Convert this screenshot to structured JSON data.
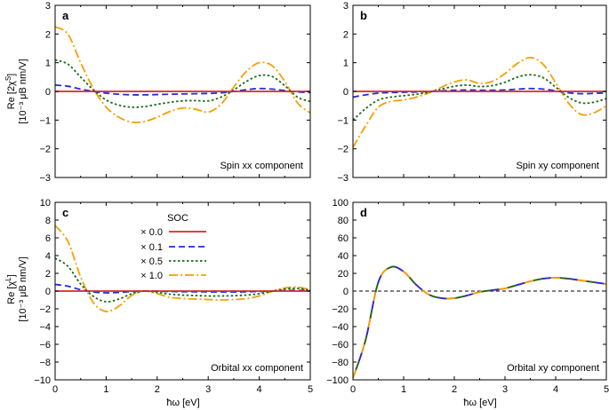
{
  "colors": {
    "soc_0_0": "#d62728",
    "soc_0_1": "#1f2fd6",
    "soc_0_5": "#1a6b1a",
    "soc_1_0": "#f5a000",
    "axis": "#000000",
    "zero_line": "#000000"
  },
  "figure": {
    "xlabel": "ħω [eV]",
    "ylabel_top_line1": "Re [2χ",
    "ylabel_top_sup": "S",
    "ylabel_top_close": "]",
    "ylabel_bottom_line1": "Re [χ",
    "ylabel_bottom_sup": "L",
    "ylabel_bottom_close": "]",
    "ylabel_units": "[10⁻³ μB nm/V]"
  },
  "legend": {
    "title": "SOC",
    "entries": [
      "× 0.0",
      "× 0.1",
      "× 0.5",
      "× 1.0"
    ]
  },
  "chart_data": [
    {
      "panel": "a",
      "type": "line",
      "component": "Spin xx component",
      "xlim": [
        0,
        5
      ],
      "ylim": [
        -3,
        3
      ],
      "xticks": [
        0,
        1,
        2,
        3,
        4,
        5
      ],
      "yticks": [
        -3,
        -2,
        -1,
        0,
        1,
        2,
        3
      ],
      "x": [
        0,
        0.25,
        0.5,
        0.75,
        1,
        1.25,
        1.5,
        1.75,
        2,
        2.25,
        2.5,
        2.75,
        3,
        3.25,
        3.5,
        3.75,
        4,
        4.25,
        4.5,
        4.75,
        5
      ],
      "series": [
        {
          "name": "× 0.0",
          "values": [
            0,
            0,
            0,
            0,
            0,
            0,
            0,
            0,
            0,
            0,
            0,
            0,
            0,
            0,
            0,
            0,
            0,
            0,
            0,
            0,
            0
          ]
        },
        {
          "name": "× 0.1",
          "values": [
            0.22,
            0.18,
            0.08,
            0.0,
            -0.06,
            -0.1,
            -0.12,
            -0.12,
            -0.11,
            -0.1,
            -0.09,
            -0.08,
            -0.07,
            -0.05,
            0.0,
            0.06,
            0.1,
            0.08,
            0.03,
            -0.02,
            -0.04
          ]
        },
        {
          "name": "× 0.5",
          "values": [
            1.1,
            0.95,
            0.5,
            0.05,
            -0.3,
            -0.48,
            -0.55,
            -0.53,
            -0.45,
            -0.38,
            -0.33,
            -0.32,
            -0.33,
            -0.2,
            0.05,
            0.35,
            0.55,
            0.52,
            0.2,
            -0.2,
            -0.35
          ]
        },
        {
          "name": "× 1.0",
          "values": [
            2.25,
            2.0,
            1.0,
            0.1,
            -0.55,
            -0.9,
            -1.07,
            -1.05,
            -0.9,
            -0.7,
            -0.58,
            -0.62,
            -0.72,
            -0.45,
            0.15,
            0.7,
            1.0,
            0.9,
            0.35,
            -0.4,
            -0.75
          ]
        }
      ]
    },
    {
      "panel": "b",
      "type": "line",
      "component": "Spin xy component",
      "xlim": [
        0,
        5
      ],
      "ylim": [
        -3,
        3
      ],
      "xticks": [
        0,
        1,
        2,
        3,
        4,
        5
      ],
      "yticks": [
        -3,
        -2,
        -1,
        0,
        1,
        2,
        3
      ],
      "x": [
        0,
        0.25,
        0.5,
        0.75,
        1,
        1.25,
        1.5,
        1.75,
        2,
        2.25,
        2.5,
        2.75,
        3,
        3.25,
        3.5,
        3.75,
        4,
        4.25,
        4.5,
        4.75,
        5
      ],
      "series": [
        {
          "name": "× 0.0",
          "values": [
            0,
            0,
            0,
            0,
            0,
            0,
            0,
            0,
            0,
            0,
            0,
            0,
            0,
            0,
            0,
            0,
            0,
            0,
            0,
            0,
            0
          ]
        },
        {
          "name": "× 0.1",
          "values": [
            -0.2,
            -0.12,
            -0.06,
            -0.04,
            -0.03,
            -0.02,
            0.0,
            0.02,
            0.04,
            0.05,
            0.04,
            0.04,
            0.05,
            0.08,
            0.1,
            0.08,
            0.02,
            -0.05,
            -0.08,
            -0.07,
            -0.05
          ]
        },
        {
          "name": "× 0.5",
          "values": [
            -1.0,
            -0.6,
            -0.3,
            -0.2,
            -0.15,
            -0.1,
            -0.03,
            0.08,
            0.18,
            0.22,
            0.17,
            0.2,
            0.32,
            0.5,
            0.58,
            0.48,
            0.15,
            -0.2,
            -0.4,
            -0.38,
            -0.25
          ]
        },
        {
          "name": "× 1.0",
          "values": [
            -1.95,
            -1.2,
            -0.55,
            -0.35,
            -0.3,
            -0.2,
            -0.05,
            0.15,
            0.33,
            0.4,
            0.28,
            0.35,
            0.62,
            0.98,
            1.18,
            0.95,
            0.3,
            -0.4,
            -0.8,
            -0.75,
            -0.5
          ]
        }
      ]
    },
    {
      "panel": "c",
      "type": "line",
      "component": "Orbital xx component",
      "xlim": [
        0,
        5
      ],
      "ylim": [
        -10,
        10
      ],
      "xticks": [
        0,
        1,
        2,
        3,
        4,
        5
      ],
      "yticks": [
        -10,
        -8,
        -6,
        -4,
        -2,
        0,
        2,
        4,
        6,
        8,
        10
      ],
      "x": [
        0,
        0.25,
        0.5,
        0.75,
        1,
        1.25,
        1.5,
        1.75,
        2,
        2.25,
        2.5,
        2.75,
        3,
        3.25,
        3.5,
        3.75,
        4,
        4.25,
        4.5,
        4.75,
        5
      ],
      "series": [
        {
          "name": "× 0.0",
          "values": [
            0,
            0,
            0,
            0,
            0,
            0,
            0,
            0,
            0,
            0,
            0,
            0,
            0,
            0,
            0,
            0,
            0,
            0,
            0,
            0,
            0
          ]
        },
        {
          "name": "× 0.1",
          "values": [
            0.75,
            0.55,
            0.15,
            -0.1,
            -0.2,
            -0.15,
            -0.05,
            0.0,
            -0.02,
            -0.05,
            -0.07,
            -0.08,
            -0.09,
            -0.1,
            -0.1,
            -0.08,
            -0.05,
            0.0,
            0.05,
            0.08,
            0.03
          ]
        },
        {
          "name": "× 0.5",
          "values": [
            3.7,
            2.8,
            0.8,
            -0.6,
            -1.2,
            -0.9,
            -0.3,
            0.0,
            -0.15,
            -0.35,
            -0.45,
            -0.5,
            -0.55,
            -0.55,
            -0.52,
            -0.45,
            -0.3,
            0.0,
            0.22,
            0.3,
            0.1
          ]
        },
        {
          "name": "× 1.0",
          "values": [
            7.4,
            5.6,
            1.6,
            -1.3,
            -2.3,
            -1.7,
            -0.5,
            0.0,
            -0.3,
            -0.7,
            -0.85,
            -0.9,
            -0.95,
            -1.0,
            -0.95,
            -0.85,
            -0.55,
            -0.05,
            0.35,
            0.45,
            0.15
          ]
        }
      ]
    },
    {
      "panel": "d",
      "type": "line",
      "component": "Orbital xy component",
      "xlim": [
        0,
        5
      ],
      "ylim": [
        -100,
        100
      ],
      "xticks": [
        0,
        1,
        2,
        3,
        4,
        5
      ],
      "yticks": [
        -100,
        -80,
        -60,
        -40,
        -20,
        0,
        20,
        40,
        60,
        80,
        100
      ],
      "x": [
        0,
        0.25,
        0.5,
        0.75,
        1,
        1.25,
        1.5,
        1.75,
        2,
        2.25,
        2.5,
        2.75,
        3,
        3.25,
        3.5,
        3.75,
        4,
        4.25,
        4.5,
        4.75,
        5
      ],
      "series": [
        {
          "name": "× 0.0",
          "values": [
            -98,
            -55,
            10,
            27,
            22,
            7,
            -4,
            -8,
            -8,
            -5,
            -1,
            1,
            3,
            7,
            11,
            14,
            15,
            14,
            12,
            10,
            8
          ]
        },
        {
          "name": "× 0.1",
          "values": [
            -98,
            -55,
            10,
            27,
            22,
            7,
            -4,
            -8,
            -8,
            -5,
            -1,
            1,
            3,
            7,
            11,
            14,
            15,
            14,
            12,
            10,
            8
          ]
        },
        {
          "name": "× 0.5",
          "values": [
            -98,
            -55,
            10,
            27,
            22,
            7,
            -4,
            -8,
            -8,
            -5,
            -1,
            1,
            3,
            7,
            11,
            14,
            15,
            14,
            12,
            10,
            8
          ]
        },
        {
          "name": "× 1.0",
          "values": [
            -98,
            -55,
            10,
            27,
            22,
            7,
            -4,
            -8,
            -8,
            -5,
            -1,
            1,
            3,
            7,
            11,
            14,
            15,
            14,
            12,
            10,
            8
          ]
        }
      ]
    }
  ]
}
